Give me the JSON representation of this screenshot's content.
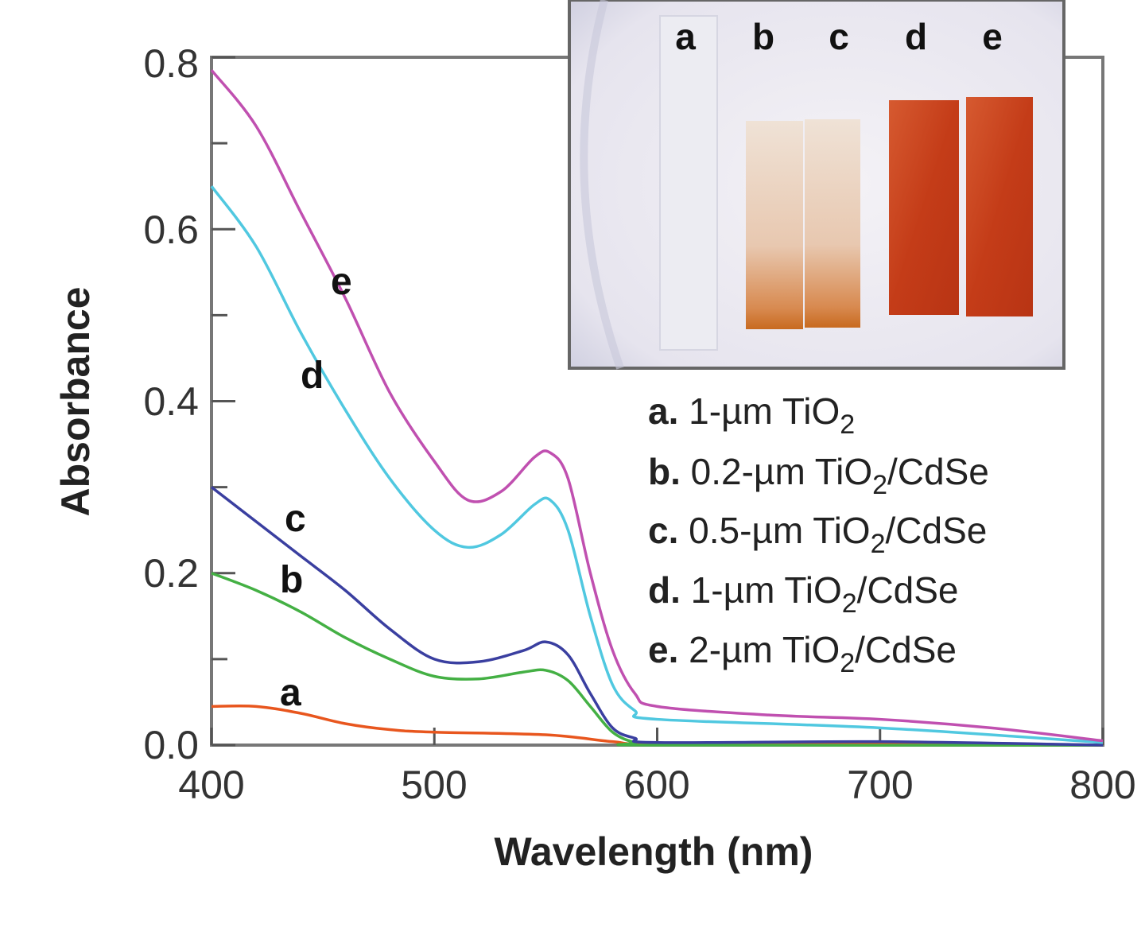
{
  "chart_data": {
    "type": "line",
    "title": "",
    "xlabel": "Wavelength (nm)",
    "ylabel": "Absorbance",
    "xlim": [
      400,
      800
    ],
    "ylim": [
      0,
      0.8
    ],
    "x_ticks": [
      "400",
      "500",
      "600",
      "700",
      "800"
    ],
    "y_ticks": [
      "0.0",
      "0.2",
      "0.4",
      "0.6",
      "0.8"
    ],
    "grid": false,
    "legend_placement": "right-middle",
    "series": [
      {
        "name": "a",
        "label": "1-µm TiO2",
        "color": "#e8561e",
        "x": [
          400,
          420,
          440,
          460,
          480,
          500,
          550,
          580,
          600,
          700,
          800
        ],
        "y": [
          0.045,
          0.045,
          0.037,
          0.025,
          0.018,
          0.015,
          0.012,
          0.004,
          0.001,
          0.003,
          0.0
        ]
      },
      {
        "name": "b",
        "label": "0.2-µm TiO2/CdSe",
        "color": "#44b044",
        "x": [
          400,
          420,
          440,
          460,
          480,
          500,
          520,
          540,
          550,
          560,
          570,
          580,
          590,
          600,
          800
        ],
        "y": [
          0.2,
          0.18,
          0.155,
          0.125,
          0.1,
          0.08,
          0.077,
          0.085,
          0.087,
          0.075,
          0.045,
          0.015,
          0.003,
          0.0,
          0.0
        ]
      },
      {
        "name": "c",
        "label": "0.5-µm TiO2/CdSe",
        "color": "#3a3fa0",
        "x": [
          400,
          420,
          440,
          460,
          480,
          500,
          520,
          540,
          550,
          560,
          570,
          580,
          590,
          600,
          700,
          800
        ],
        "y": [
          0.3,
          0.26,
          0.22,
          0.18,
          0.135,
          0.1,
          0.097,
          0.11,
          0.12,
          0.105,
          0.06,
          0.02,
          0.008,
          0.003,
          0.004,
          0.0
        ]
      },
      {
        "name": "d",
        "label": "1-µm TiO2/CdSe",
        "color": "#50c8e0",
        "x": [
          400,
          420,
          440,
          460,
          480,
          500,
          515,
          530,
          545,
          552,
          560,
          570,
          580,
          590,
          600,
          700,
          800
        ],
        "y": [
          0.65,
          0.58,
          0.48,
          0.39,
          0.31,
          0.25,
          0.23,
          0.245,
          0.28,
          0.285,
          0.25,
          0.15,
          0.07,
          0.04,
          0.03,
          0.02,
          0.003
        ]
      },
      {
        "name": "e",
        "label": "2-µm TiO2/CdSe",
        "color": "#c050b0",
        "x": [
          400,
          420,
          440,
          460,
          480,
          500,
          515,
          530,
          545,
          552,
          560,
          570,
          580,
          590,
          600,
          650,
          700,
          750,
          800
        ],
        "y": [
          0.785,
          0.72,
          0.62,
          0.52,
          0.41,
          0.33,
          0.285,
          0.295,
          0.335,
          0.34,
          0.31,
          0.2,
          0.11,
          0.06,
          0.045,
          0.035,
          0.03,
          0.02,
          0.005
        ]
      }
    ],
    "curve_labels": [
      "a",
      "b",
      "c",
      "d",
      "e"
    ],
    "legend": [
      {
        "letter": "a.",
        "text": "1-µm TiO",
        "sub": "2",
        "suffix": ""
      },
      {
        "letter": "b.",
        "text": "0.2-µm TiO",
        "sub": "2",
        "suffix": "/CdSe"
      },
      {
        "letter": "c.",
        "text": "0.5-µm TiO",
        "sub": "2",
        "suffix": "/CdSe"
      },
      {
        "letter": "d.",
        "text": "1-µm TiO",
        "sub": "2",
        "suffix": "/CdSe"
      },
      {
        "letter": "e.",
        "text": "2-µm TiO",
        "sub": "2",
        "suffix": "/CdSe"
      }
    ],
    "inset": {
      "description_labels": [
        "a",
        "b",
        "c",
        "d",
        "e"
      ],
      "sample_colors": [
        "#e8e8ee",
        "#e2b090",
        "#d9a27c",
        "#c8401a",
        "#c63a18"
      ]
    }
  }
}
